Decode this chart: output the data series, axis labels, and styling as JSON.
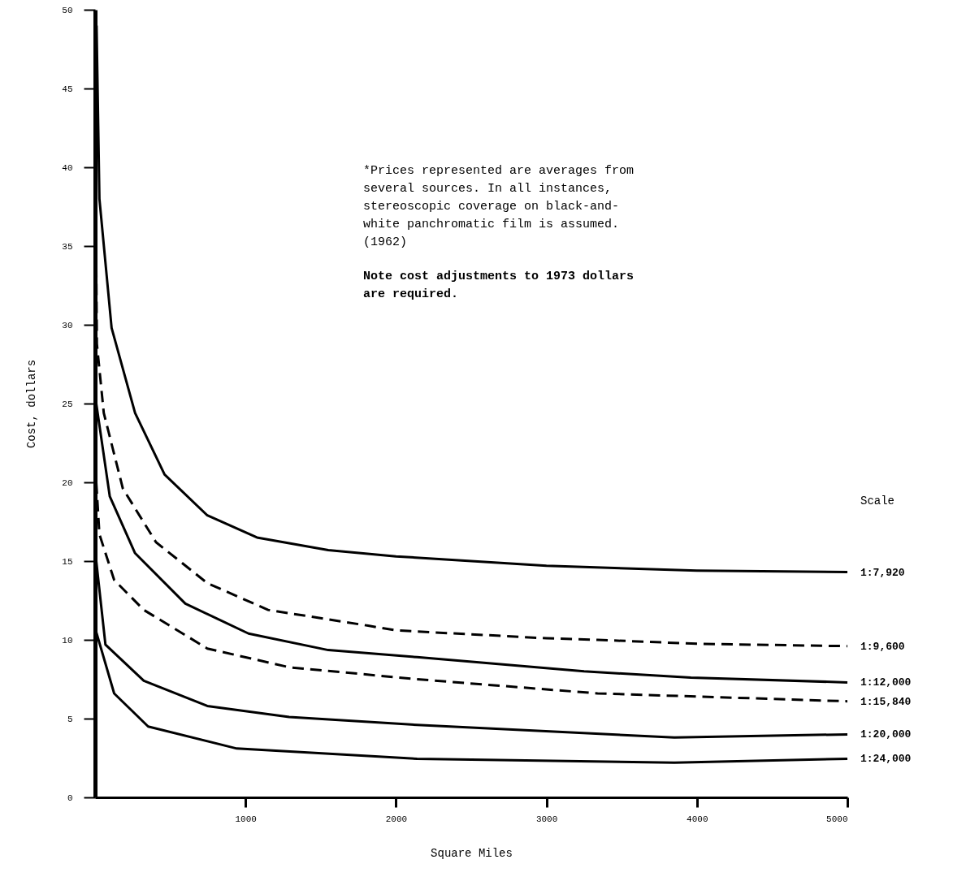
{
  "chart_data": {
    "type": "line",
    "xlabel": "Square Miles",
    "ylabel": "Cost, dollars",
    "legend_title": "Scale",
    "grid": false,
    "marker": "none",
    "xlim": [
      0,
      5000
    ],
    "xticks": [
      1000,
      2000,
      3000,
      4000,
      5000
    ],
    "ylim": [
      0,
      50
    ],
    "yticks": [
      0,
      5,
      10,
      15,
      20,
      25,
      30,
      35,
      40,
      45,
      50
    ],
    "series": [
      {
        "name": "1:7,920",
        "color": "#000000",
        "line_style": "solid",
        "x": [
          10,
          29,
          110,
          266,
          462,
          746,
          1076,
          1550,
          2000,
          3000,
          4000,
          5000
        ],
        "values": [
          49,
          38,
          29.8,
          24.4,
          20.5,
          17.9,
          16.5,
          15.7,
          15.3,
          14.7,
          14.4,
          14.3
        ]
      },
      {
        "name": "1:9,600",
        "color": "#000000",
        "line_style": "dashed",
        "x": [
          6,
          12,
          58,
          185,
          405,
          746,
          1150,
          1815,
          2000,
          3000,
          3340,
          4000,
          5000
        ],
        "values": [
          36,
          28.8,
          24.4,
          19.6,
          16.2,
          13.6,
          11.9,
          10.9,
          10.6,
          10.1,
          10.0,
          9.75,
          9.6
        ]
      },
      {
        "name": "1:12,000",
        "color": "#000000",
        "line_style": "solid",
        "x": [
          8,
          98,
          266,
          600,
          1020,
          1550,
          2140,
          3250,
          3960,
          5000
        ],
        "values": [
          25,
          19.1,
          15.5,
          12.3,
          10.4,
          9.35,
          8.9,
          8.0,
          7.6,
          7.3
        ]
      },
      {
        "name": "1:15,840",
        "color": "#000000",
        "line_style": "dashed",
        "x": [
          8,
          29,
          127,
          324,
          746,
          1290,
          2140,
          3340,
          5000
        ],
        "values": [
          20,
          16.7,
          13.8,
          11.9,
          9.45,
          8.26,
          7.5,
          6.6,
          6.1
        ]
      },
      {
        "name": "1:20,000",
        "color": "#000000",
        "line_style": "solid",
        "x": [
          8,
          69,
          324,
          746,
          1290,
          2140,
          3850,
          5000
        ],
        "values": [
          15,
          9.7,
          7.4,
          5.8,
          5.1,
          4.6,
          3.8,
          4.0
        ]
      },
      {
        "name": "1:24,000",
        "color": "#000000",
        "line_style": "solid",
        "x": [
          8,
          127,
          353,
          942,
          2140,
          3850,
          5000
        ],
        "values": [
          10.5,
          6.6,
          4.5,
          3.1,
          2.45,
          2.2,
          2.45
        ]
      }
    ],
    "annotations": [
      "*Prices represented are averages from\n several sources.  In all instances,\n stereoscopic coverage on black-and-\n white panchromatic film is assumed.\n (1962)",
      "Note cost adjustments to 1973 dollars\nare required."
    ]
  }
}
